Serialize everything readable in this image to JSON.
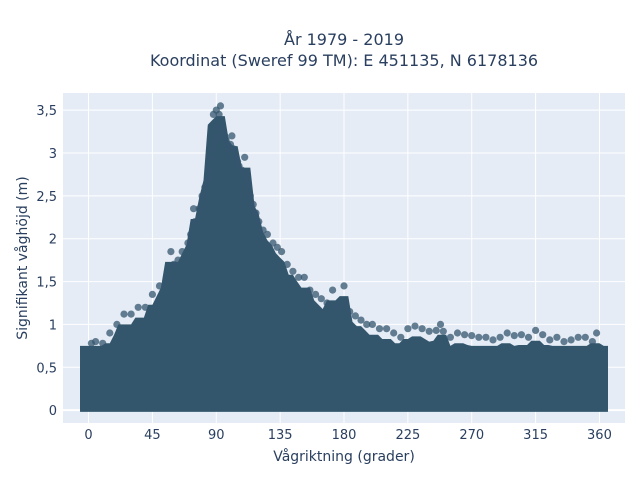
{
  "chart_data": {
    "type": "scatter",
    "title": "År 1979 - 2019",
    "subtitle": "Koordinat (Sweref 99 TM): E 451135, N 6178136",
    "xlabel": "Vågriktning (grader)",
    "ylabel": "Signifikant våghöjd (m)",
    "xlim": [
      -18,
      378
    ],
    "ylim": [
      -0.15,
      3.7
    ],
    "x_ticks": [
      0,
      45,
      90,
      135,
      180,
      225,
      270,
      315,
      360
    ],
    "x_tick_labels": [
      "0",
      "45",
      "90",
      "135",
      "180",
      "225",
      "270",
      "315",
      "360"
    ],
    "y_ticks": [
      0,
      0.5,
      1,
      1.5,
      2,
      2.5,
      3,
      3.5
    ],
    "y_tick_labels": [
      "0",
      "0,5",
      "1",
      "1,5",
      "2",
      "2,5",
      "3",
      "3,5"
    ],
    "grid": true,
    "colors": {
      "marker": "#34566d",
      "plot_bg": "#e5ecf6",
      "grid": "#ffffff",
      "text": "#2a3f5f"
    },
    "series": [
      {
        "x": [
          2,
          5,
          10,
          15,
          20,
          25,
          30,
          35,
          40,
          45,
          50,
          55,
          60,
          63,
          66,
          70,
          72,
          75,
          78,
          80,
          82,
          84,
          85,
          86,
          88,
          89,
          90,
          91,
          92,
          93,
          94,
          95,
          96,
          97,
          98,
          99,
          100,
          101,
          102,
          104,
          105,
          106,
          108,
          110,
          112,
          114,
          116,
          118,
          120,
          123,
          126,
          130,
          133,
          136,
          140,
          144,
          148,
          152,
          156,
          160,
          164,
          168,
          172,
          176,
          180,
          184,
          188,
          192,
          196,
          200,
          205,
          210,
          215,
          220,
          225,
          230,
          235,
          240,
          245,
          250,
          255,
          260,
          265,
          270,
          275,
          280,
          285,
          290,
          295,
          300,
          305,
          310,
          315,
          320,
          325,
          330,
          335,
          340,
          345,
          350,
          355,
          358,
          88,
          90,
          95,
          100,
          110,
          58,
          180,
          248,
          74,
          117
        ],
        "y": [
          0.78,
          0.8,
          0.78,
          0.9,
          1.0,
          1.12,
          1.12,
          1.2,
          1.2,
          1.35,
          1.45,
          1.55,
          1.7,
          1.75,
          1.85,
          1.95,
          2.05,
          2.2,
          2.35,
          2.5,
          2.6,
          2.7,
          2.8,
          2.95,
          3.05,
          3.15,
          3.2,
          3.3,
          3.45,
          3.55,
          3.3,
          3.25,
          3.2,
          3.15,
          3.1,
          3.05,
          3.05,
          3.2,
          3.05,
          2.95,
          2.9,
          2.85,
          2.8,
          2.75,
          2.65,
          2.5,
          2.4,
          2.3,
          2.2,
          2.1,
          2.05,
          1.95,
          1.9,
          1.85,
          1.7,
          1.62,
          1.55,
          1.55,
          1.4,
          1.35,
          1.3,
          1.25,
          1.4,
          1.2,
          1.25,
          1.15,
          1.1,
          1.05,
          1.0,
          1.0,
          0.95,
          0.95,
          0.9,
          0.85,
          0.95,
          0.98,
          0.95,
          0.92,
          0.93,
          0.92,
          0.85,
          0.9,
          0.88,
          0.87,
          0.85,
          0.85,
          0.82,
          0.85,
          0.9,
          0.87,
          0.88,
          0.85,
          0.93,
          0.88,
          0.82,
          0.85,
          0.8,
          0.82,
          0.85,
          0.85,
          0.8,
          0.9,
          3.45,
          3.5,
          3.2,
          3.1,
          2.95,
          1.85,
          1.45,
          1.0,
          2.35,
          2.3
        ]
      }
    ]
  }
}
